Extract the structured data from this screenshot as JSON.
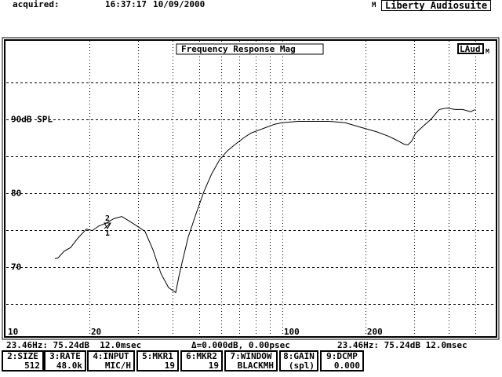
{
  "header": {
    "acquired_label": "acquired:",
    "time": "16:37:17",
    "date": "10/09/2000",
    "m_flag": "M",
    "brand": "Liberty Audiosuite"
  },
  "plot": {
    "title": "Frequency Response Mag",
    "badge": "LAud",
    "badge_flag": "M",
    "y_labels": [
      {
        "text": "90dB SPL",
        "value": 90
      },
      {
        "text": "80",
        "value": 80
      },
      {
        "text": "70",
        "value": 70
      }
    ],
    "x_labels": [
      {
        "text": "10",
        "value": 10
      },
      {
        "text": "20",
        "value": 20
      },
      {
        "text": "100",
        "value": 100
      },
      {
        "text": "200",
        "value": 200
      }
    ],
    "markers": [
      {
        "text": "2"
      },
      {
        "text": "1"
      }
    ]
  },
  "chart_data": {
    "type": "line",
    "title": "Frequency Response Mag",
    "xscale": "log",
    "xlim": [
      10,
      593
    ],
    "ylim": [
      60.6,
      100.6
    ],
    "grid": true,
    "x_gridlines": [
      20,
      30,
      40,
      50,
      60,
      70,
      80,
      90,
      100,
      200,
      300,
      400,
      500
    ],
    "y_gridlines": [
      65,
      70,
      75,
      80,
      85,
      90,
      95
    ],
    "x": [
      15.0,
      15.4,
      16.2,
      17.1,
      18.2,
      19.5,
      20.5,
      21.6,
      23.0,
      24.5,
      26.2,
      27.9,
      29.8,
      31.8,
      34.0,
      36.3,
      38.7,
      41.1,
      42.2,
      43.3,
      45.6,
      48.7,
      52.0,
      55.5,
      59.3,
      63.2,
      67.6,
      72.1,
      76.9,
      82.2,
      87.7,
      93.7,
      100,
      114,
      130,
      148,
      169,
      192,
      219,
      242,
      258,
      276,
      285,
      294,
      304,
      325,
      346,
      370,
      395,
      422,
      450,
      481,
      500
    ],
    "y": [
      71.1,
      71.2,
      72.1,
      72.6,
      73.9,
      75.1,
      74.9,
      75.5,
      75.9,
      76.5,
      76.8,
      76.2,
      75.5,
      74.8,
      72.3,
      69.1,
      67.2,
      66.5,
      68.7,
      70.5,
      74.0,
      77.2,
      80.2,
      82.6,
      84.5,
      85.7,
      86.6,
      87.4,
      88.1,
      88.5,
      88.9,
      89.3,
      89.5,
      89.7,
      89.7,
      89.7,
      89.5,
      88.9,
      88.3,
      87.7,
      87.2,
      86.6,
      86.5,
      87.0,
      88.1,
      89.1,
      90.0,
      91.3,
      91.5,
      91.3,
      91.3,
      91.0,
      91.3
    ]
  },
  "status": {
    "cursor1": "23.46Hz: 75.24dB  12.0msec",
    "delta": "Δ=0.000dB, 0.00psec",
    "cursor2": "23.46Hz: 75.24dB 12.0msec"
  },
  "function_keys": [
    {
      "label": "2:SIZE",
      "value": "512"
    },
    {
      "label": "3:RATE",
      "value": "48.0k"
    },
    {
      "label": "4:INPUT",
      "value": "MIC/H"
    },
    {
      "label": "5:MKR1",
      "value": "19"
    },
    {
      "label": "6:MKR2",
      "value": "19"
    },
    {
      "label": "7:WINDOW",
      "value": "BLACKMH"
    },
    {
      "label": "8:GAIN",
      "value": "(spl)"
    },
    {
      "label": "9:DCMP",
      "value": "0.000"
    }
  ]
}
